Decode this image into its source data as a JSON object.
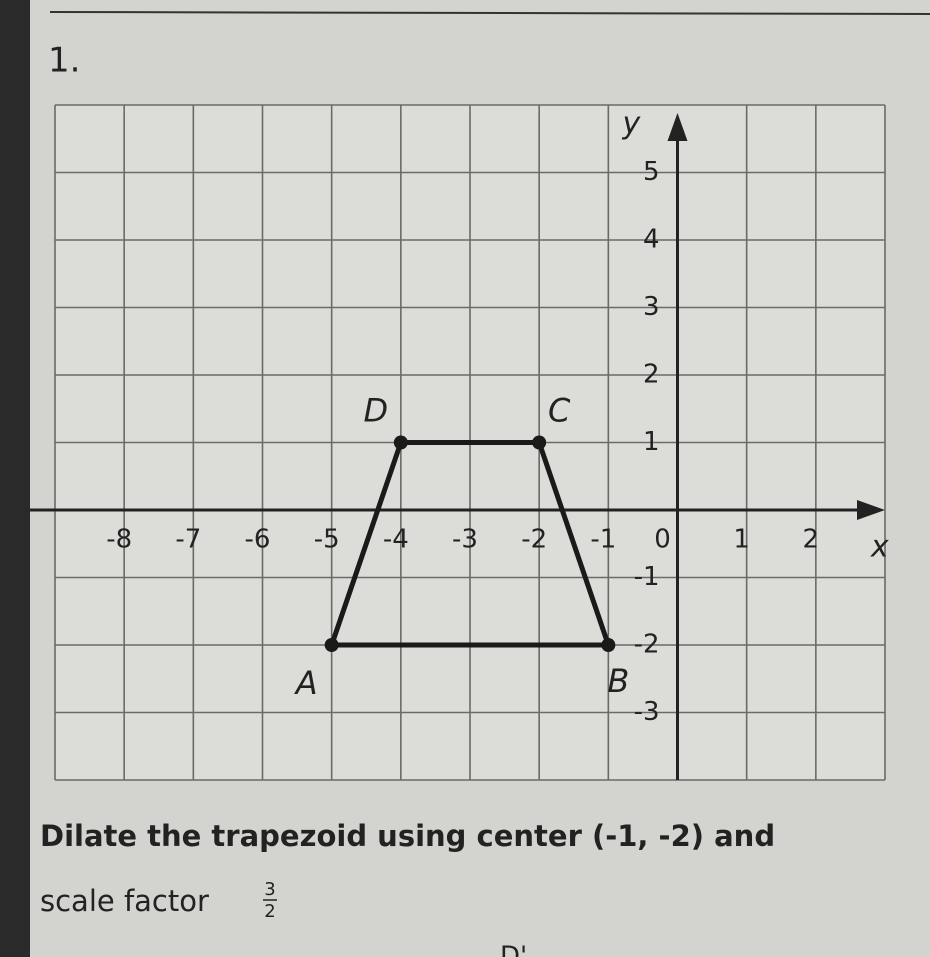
{
  "problem_number": "1.",
  "graph": {
    "x_label": "x",
    "y_label": "y",
    "xlim": [
      -9,
      3
    ],
    "ylim": [
      -4,
      6
    ],
    "xticks": [
      -8,
      -7,
      -6,
      -5,
      -4,
      -3,
      -2,
      -1,
      0,
      1,
      2
    ],
    "yticks": [
      5,
      4,
      3,
      2,
      1,
      -1,
      -2,
      -3
    ],
    "points": [
      {
        "label": "A",
        "x": -5,
        "y": -2
      },
      {
        "label": "B",
        "x": -1,
        "y": -2
      },
      {
        "label": "C",
        "x": -2,
        "y": 1
      },
      {
        "label": "D",
        "x": -4,
        "y": 1
      }
    ]
  },
  "instruction": {
    "line1": "Dilate the trapezoid using center (-1, -2) and",
    "line2": "scale factor",
    "fraction_numerator": "3",
    "fraction_denominator": "2"
  },
  "cut_off_label": "D'"
}
